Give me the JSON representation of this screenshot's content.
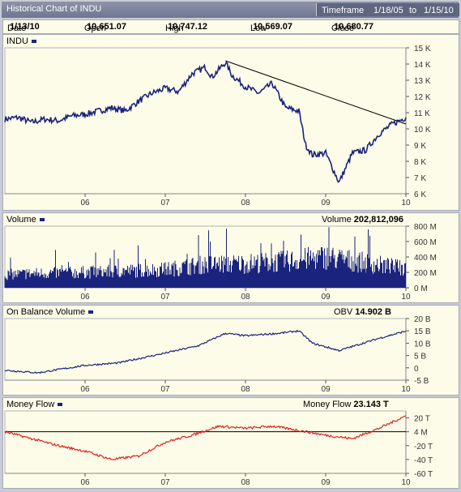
{
  "window": {
    "title": "Historical Chart of INDU",
    "timeframe_label": "Timeframe",
    "timeframe_start": "1/18/05",
    "timeframe_to": "to",
    "timeframe_end": "1/15/10"
  },
  "quote": {
    "date_label": "Date",
    "date": "1/13/10",
    "open_label": "Open",
    "open": "10,651.07",
    "high_label": "High",
    "high": "10,747.12",
    "low_label": "Low",
    "low": "10,569.07",
    "close_label": "Close",
    "close": "10,680.77"
  },
  "colors": {
    "price": "#1a237e",
    "volume": "#1a237e",
    "obv": "#1a237e",
    "moneyflow": "#e02020",
    "trendline": "#000000",
    "panel_bg": "#fdfce8"
  },
  "chart_data": [
    {
      "type": "line",
      "name": "INDU",
      "x_tick_labels": [
        "06",
        "07",
        "08",
        "09",
        "10"
      ],
      "y_tick_labels": [
        "15 K",
        "14 K",
        "13 K",
        "12 K",
        "11 K",
        "10 K",
        "9 K",
        "8 K",
        "7 K",
        "6 K"
      ],
      "ylim": [
        6000,
        15000
      ],
      "x": [
        "2005-01",
        "2005-03",
        "2005-05",
        "2005-07",
        "2005-09",
        "2005-11",
        "2006-01",
        "2006-03",
        "2006-05",
        "2006-07",
        "2006-09",
        "2006-11",
        "2007-01",
        "2007-03",
        "2007-05",
        "2007-07",
        "2007-08",
        "2007-10",
        "2007-11",
        "2008-01",
        "2008-03",
        "2008-05",
        "2008-07",
        "2008-09",
        "2008-10",
        "2008-11",
        "2009-01",
        "2009-03",
        "2009-05",
        "2009-07",
        "2009-09",
        "2009-11",
        "2010-01"
      ],
      "values": [
        10600,
        10700,
        10400,
        10600,
        10500,
        10800,
        10900,
        11100,
        11300,
        11100,
        11700,
        12200,
        12500,
        12300,
        13400,
        13800,
        13200,
        14100,
        13300,
        12600,
        12200,
        12800,
        11300,
        11100,
        9000,
        8400,
        8500,
        6700,
        8500,
        8700,
        9700,
        10300,
        10700
      ],
      "trendline": {
        "from": [
          "2007-10",
          14200
        ],
        "to": [
          "2010-01",
          10300
        ]
      },
      "grid": false
    },
    {
      "type": "bar",
      "name": "Volume",
      "current_label": "Volume",
      "current_value": "202,812,096",
      "y_tick_labels": [
        "800 M",
        "600 M",
        "400 M",
        "200 M",
        "0 M"
      ],
      "ylim": [
        0,
        800000000
      ],
      "x": [
        "2005-01",
        "2005-07",
        "2006-01",
        "2006-07",
        "2007-01",
        "2007-07",
        "2008-01",
        "2008-07",
        "2009-01",
        "2009-07",
        "2010-01"
      ],
      "values": [
        180000000,
        200000000,
        210000000,
        230000000,
        250000000,
        320000000,
        330000000,
        360000000,
        420000000,
        340000000,
        260000000
      ],
      "x_tick_labels": [
        "06",
        "07",
        "08",
        "09",
        "10"
      ]
    },
    {
      "type": "line",
      "name": "On Balance Volume",
      "current_label": "OBV",
      "current_value": "14.902 B",
      "y_tick_labels": [
        "20 B",
        "15 B",
        "10 B",
        "5 B",
        "0",
        "-5 B"
      ],
      "ylim": [
        -5000000000,
        20000000000
      ],
      "x": [
        "2005-01",
        "2005-06",
        "2006-01",
        "2006-06",
        "2007-01",
        "2007-06",
        "2007-10",
        "2008-01",
        "2008-06",
        "2008-09",
        "2008-11",
        "2009-03",
        "2009-06",
        "2009-09",
        "2010-01"
      ],
      "values": [
        -1000000000,
        -2000000000,
        1000000000,
        2000000000,
        6000000000,
        9000000000,
        14000000000,
        13000000000,
        14000000000,
        15000000000,
        10000000000,
        7000000000,
        9500000000,
        12000000000,
        14900000000
      ],
      "x_tick_labels": [
        "06",
        "07",
        "08",
        "09",
        "10"
      ]
    },
    {
      "type": "line",
      "name": "Money Flow",
      "current_label": "Money Flow",
      "current_value": "23.143 T",
      "y_tick_labels": [
        "20 T",
        "4 M",
        "-20 T",
        "-40 T",
        "-60 T"
      ],
      "ylim": [
        -60000000000000,
        30000000000000
      ],
      "x": [
        "2005-01",
        "2005-05",
        "2005-09",
        "2006-01",
        "2006-05",
        "2006-09",
        "2007-01",
        "2007-05",
        "2007-09",
        "2008-01",
        "2008-05",
        "2008-09",
        "2009-01",
        "2009-05",
        "2009-09",
        "2010-01"
      ],
      "values": [
        0,
        -10000000000000,
        -20000000000000,
        -28000000000000,
        -40000000000000,
        -35000000000000,
        -15000000000000,
        -5000000000000,
        8000000000000,
        5000000000000,
        8000000000000,
        2000000000000,
        -5000000000000,
        -10000000000000,
        5000000000000,
        23000000000000
      ],
      "zero_line": true,
      "x_tick_labels": [
        "06",
        "07",
        "08",
        "09",
        "10"
      ]
    }
  ]
}
